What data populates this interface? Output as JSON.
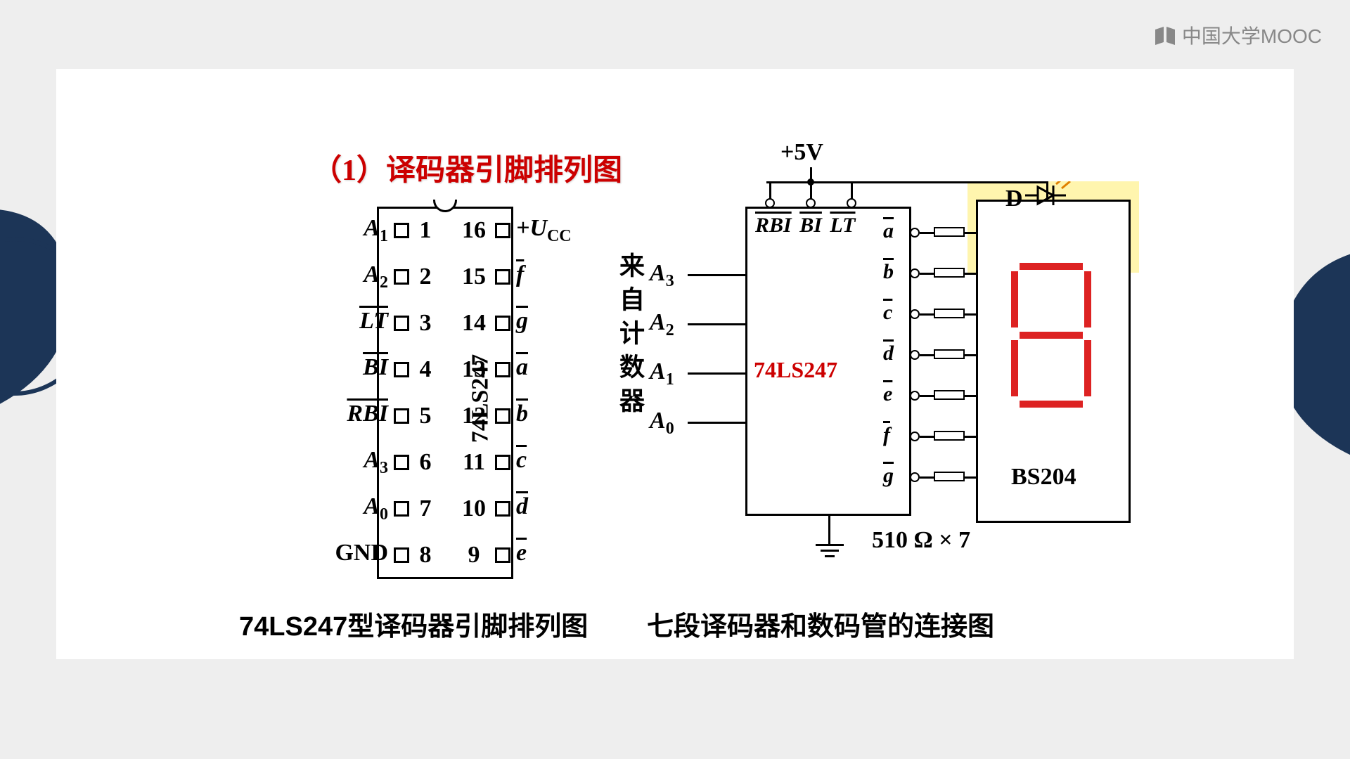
{
  "watermark": {
    "text": "中国大学MOOC"
  },
  "section_title": "（1）译码器引脚排列图",
  "chip": {
    "name": "74LS247",
    "left_pins": [
      {
        "num": "1",
        "label": "A",
        "sub": "1",
        "bar": false
      },
      {
        "num": "2",
        "label": "A",
        "sub": "2",
        "bar": false
      },
      {
        "num": "3",
        "label": "LT",
        "sub": "",
        "bar": true
      },
      {
        "num": "4",
        "label": "BI",
        "sub": "",
        "bar": true
      },
      {
        "num": "5",
        "label": "RBI",
        "sub": "",
        "bar": true
      },
      {
        "num": "6",
        "label": "A",
        "sub": "3",
        "bar": false
      },
      {
        "num": "7",
        "label": "A",
        "sub": "0",
        "bar": false
      },
      {
        "num": "8",
        "label": "GND",
        "sub": "",
        "bar": false,
        "upright": true
      }
    ],
    "right_pins": [
      {
        "num": "16",
        "label": "+U",
        "sub": "CC",
        "bar": false
      },
      {
        "num": "15",
        "label": "f",
        "sub": "",
        "bar": true
      },
      {
        "num": "14",
        "label": "g",
        "sub": "",
        "bar": true
      },
      {
        "num": "13",
        "label": "a",
        "sub": "",
        "bar": true
      },
      {
        "num": "12",
        "label": "b",
        "sub": "",
        "bar": true
      },
      {
        "num": "11",
        "label": "c",
        "sub": "",
        "bar": true
      },
      {
        "num": "10",
        "label": "d",
        "sub": "",
        "bar": true
      },
      {
        "num": "9",
        "label": "e",
        "sub": "",
        "bar": true
      }
    ],
    "caption": "74LS247型译码器引脚排列图"
  },
  "circuit": {
    "vcc": "+5V",
    "decoder_name": "74LS247",
    "top_inputs": [
      "RBI",
      "BI",
      "LT"
    ],
    "side_inputs_title": "来自计数器",
    "side_inputs": [
      {
        "label": "A",
        "sub": "3"
      },
      {
        "label": "A",
        "sub": "2"
      },
      {
        "label": "A",
        "sub": "1"
      },
      {
        "label": "A",
        "sub": "0"
      }
    ],
    "outputs": [
      "a",
      "b",
      "c",
      "d",
      "e",
      "f",
      "g"
    ],
    "resistor_text": "510 Ω × 7",
    "display_name": "BS204",
    "diode_label": "D",
    "caption": "七段译码器和数码管的连接图"
  },
  "colors": {
    "page_bg": "#eeeeee",
    "content_bg": "#ffffff",
    "title_red": "#cc0000",
    "accent_navy": "#1c3557",
    "highlight": "#fff3a0",
    "seg_red": "#dd2222",
    "watermark": "#888888"
  }
}
